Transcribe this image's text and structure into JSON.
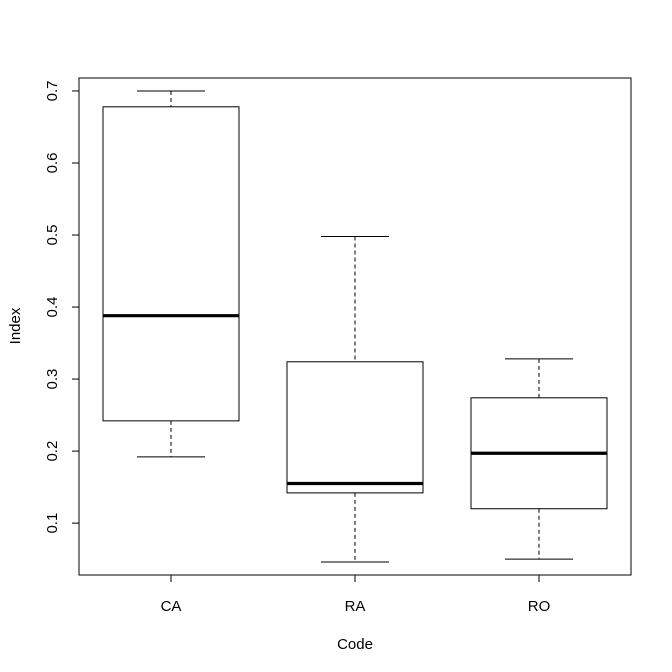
{
  "chart_data": {
    "type": "boxplot",
    "xlabel": "Code",
    "ylabel": "Index",
    "categories": [
      "CA",
      "RA",
      "RO"
    ],
    "boxes": [
      {
        "category": "CA",
        "whisker_low": 0.192,
        "q1": 0.242,
        "median": 0.388,
        "q3": 0.678,
        "whisker_high": 0.7
      },
      {
        "category": "RA",
        "whisker_low": 0.046,
        "q1": 0.142,
        "median": 0.155,
        "q3": 0.324,
        "whisker_high": 0.498
      },
      {
        "category": "RO",
        "whisker_low": 0.05,
        "q1": 0.12,
        "median": 0.197,
        "q3": 0.274,
        "whisker_high": 0.328
      }
    ],
    "yticks": [
      0.1,
      0.2,
      0.3,
      0.4,
      0.5,
      0.6,
      0.7
    ],
    "ytick_labels": [
      "0.1",
      "0.2",
      "0.3",
      "0.4",
      "0.5",
      "0.6",
      "0.7"
    ],
    "ylim": [
      0.028,
      0.718
    ],
    "grid": false,
    "colors": {
      "stroke": "#000000",
      "fill": "#ffffff"
    }
  }
}
